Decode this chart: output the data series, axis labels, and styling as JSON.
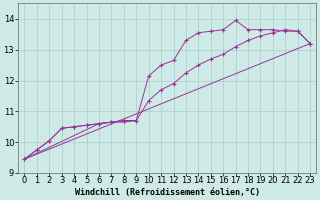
{
  "xlabel": "Windchill (Refroidissement éolien,°C)",
  "background_color": "#ceeae7",
  "grid_color": "#aacccc",
  "line_color": "#993399",
  "xlim": [
    -0.5,
    23.5
  ],
  "ylim": [
    9.0,
    14.5
  ],
  "yticks": [
    9,
    10,
    11,
    12,
    13,
    14
  ],
  "xticks": [
    0,
    1,
    2,
    3,
    4,
    5,
    6,
    7,
    8,
    9,
    10,
    11,
    12,
    13,
    14,
    15,
    16,
    17,
    18,
    19,
    20,
    21,
    22,
    23
  ],
  "series1_x": [
    0,
    1,
    2,
    3,
    4,
    5,
    6,
    7,
    8,
    9,
    10,
    11,
    12,
    13,
    14,
    15,
    16,
    17,
    18,
    19,
    20,
    21,
    22,
    23
  ],
  "series1_y": [
    9.45,
    9.75,
    10.05,
    10.45,
    10.5,
    10.55,
    10.6,
    10.65,
    10.7,
    10.7,
    12.15,
    12.5,
    12.65,
    13.3,
    13.55,
    13.6,
    13.65,
    13.95,
    13.65,
    13.65,
    13.65,
    13.6,
    13.6,
    13.2
  ],
  "series2_x": [
    0,
    1,
    2,
    3,
    4,
    5,
    6,
    7,
    8,
    9,
    10,
    11,
    12,
    13,
    14,
    15,
    16,
    17,
    18,
    19,
    20,
    21,
    22,
    23
  ],
  "series2_y": [
    9.45,
    9.75,
    10.05,
    10.45,
    10.5,
    10.55,
    10.6,
    10.65,
    10.7,
    10.7,
    11.35,
    11.7,
    11.9,
    12.25,
    12.5,
    12.7,
    12.85,
    13.1,
    13.3,
    13.45,
    13.55,
    13.65,
    13.6,
    13.2
  ],
  "series3_x": [
    0,
    23
  ],
  "series3_y": [
    9.45,
    13.2
  ],
  "series4_x": [
    0,
    6,
    7,
    8,
    9
  ],
  "series4_y": [
    9.45,
    10.6,
    10.65,
    10.65,
    10.7
  ],
  "xlabel_fontsize": 6,
  "tick_fontsize": 6
}
